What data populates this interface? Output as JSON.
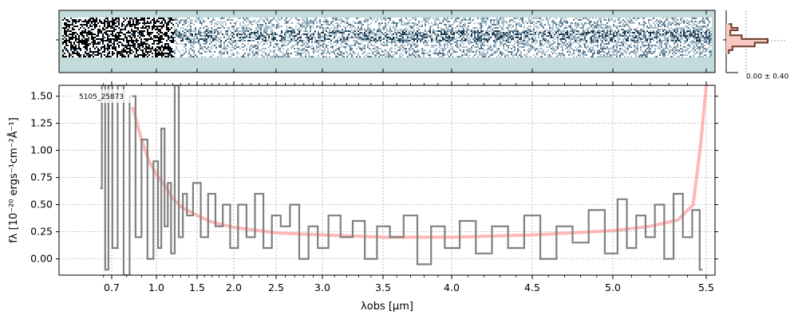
{
  "chart_data": [
    {
      "type": "heatmap",
      "panel": "2d-spectrum",
      "colormap": [
        "#000000",
        "#1e3a4c",
        "#5c7b90",
        "#a8bfcb",
        "#ffffff"
      ],
      "background": "#c3dbdb",
      "noise_level": "high at short wavelengths, lower toward long wavelengths"
    },
    {
      "type": "line",
      "panel": "profile",
      "label": "0.00 ± 0.40",
      "fill": "#f9c9c3",
      "line": "#6b3a2a",
      "profile": [
        {
          "y": 0.22,
          "v": 0.05
        },
        {
          "y": 0.28,
          "v": 0.1
        },
        {
          "y": 0.32,
          "v": 0.22
        },
        {
          "y": 0.4,
          "v": 0.08
        },
        {
          "y": 0.46,
          "v": 0.3
        },
        {
          "y": 0.52,
          "v": 0.8
        },
        {
          "y": 0.58,
          "v": 0.55
        },
        {
          "y": 0.64,
          "v": 0.12
        },
        {
          "y": 0.7,
          "v": 0.05
        }
      ]
    },
    {
      "type": "line",
      "panel": "1d-spectrum",
      "xlabel": "λobs [μm]",
      "ylabel": "fλ [10⁻²⁰ ergs⁻¹cm⁻²Å⁻¹]",
      "ylim": [
        -0.15,
        1.6
      ],
      "xlim": [
        0.55,
        5.52
      ],
      "x_scale": "sqrt-like spectral pixel scale",
      "y_ticks": [
        0.0,
        0.25,
        0.5,
        0.75,
        1.0,
        1.25,
        1.5
      ],
      "y_tick_labels": [
        "0.00",
        "0.25",
        "0.50",
        "0.75",
        "1.00",
        "1.25",
        "1.50"
      ],
      "x_ticks": [
        0.7,
        1.0,
        1.5,
        2.0,
        2.5,
        3.0,
        3.5,
        4.0,
        4.5,
        5.0,
        5.5
      ],
      "x_tick_labels": [
        "0.7",
        "1.0",
        "1.5",
        "2.0",
        "2.5",
        "3.0",
        "3.5",
        "4.0",
        "4.5",
        "5.0",
        "5.5"
      ],
      "grid": true,
      "annotation": "5105_25873",
      "series": [
        {
          "role": "data",
          "color": "#808080",
          "points": [
            [
              0.56,
              0.65
            ],
            [
              0.6,
              1.6
            ],
            [
              0.64,
              -0.1
            ],
            [
              0.68,
              1.6
            ],
            [
              0.72,
              0.1
            ],
            [
              0.76,
              1.6
            ],
            [
              0.8,
              -0.15
            ],
            [
              0.84,
              1.5
            ],
            [
              0.88,
              0.2
            ],
            [
              0.92,
              1.1
            ],
            [
              0.96,
              0.0
            ],
            [
              1.0,
              0.9
            ],
            [
              1.04,
              0.1
            ],
            [
              1.08,
              1.2
            ],
            [
              1.12,
              0.3
            ],
            [
              1.16,
              0.7
            ],
            [
              1.2,
              0.05
            ],
            [
              1.25,
              1.6
            ],
            [
              1.3,
              0.2
            ],
            [
              1.35,
              0.6
            ],
            [
              1.4,
              0.4
            ],
            [
              1.5,
              0.7
            ],
            [
              1.6,
              0.2
            ],
            [
              1.7,
              0.6
            ],
            [
              1.8,
              0.3
            ],
            [
              1.9,
              0.5
            ],
            [
              2.0,
              0.1
            ],
            [
              2.1,
              0.5
            ],
            [
              2.2,
              0.2
            ],
            [
              2.3,
              0.6
            ],
            [
              2.4,
              0.1
            ],
            [
              2.5,
              0.4
            ],
            [
              2.6,
              0.3
            ],
            [
              2.7,
              0.5
            ],
            [
              2.8,
              0.0
            ],
            [
              2.9,
              0.3
            ],
            [
              3.0,
              0.1
            ],
            [
              3.1,
              0.4
            ],
            [
              3.2,
              0.2
            ],
            [
              3.3,
              0.35
            ],
            [
              3.4,
              0.0
            ],
            [
              3.5,
              0.3
            ],
            [
              3.6,
              0.2
            ],
            [
              3.7,
              0.4
            ],
            [
              3.8,
              -0.05
            ],
            [
              3.9,
              0.3
            ],
            [
              4.0,
              0.1
            ],
            [
              4.1,
              0.35
            ],
            [
              4.2,
              0.05
            ],
            [
              4.3,
              0.3
            ],
            [
              4.4,
              0.1
            ],
            [
              4.5,
              0.4
            ],
            [
              4.6,
              0.0
            ],
            [
              4.7,
              0.3
            ],
            [
              4.8,
              0.15
            ],
            [
              4.9,
              0.45
            ],
            [
              5.0,
              0.05
            ],
            [
              5.05,
              0.55
            ],
            [
              5.1,
              0.1
            ],
            [
              5.15,
              0.4
            ],
            [
              5.2,
              0.2
            ],
            [
              5.25,
              0.5
            ],
            [
              5.3,
              0.0
            ],
            [
              5.35,
              0.6
            ],
            [
              5.4,
              0.2
            ],
            [
              5.45,
              0.45
            ],
            [
              5.48,
              -0.1
            ]
          ]
        },
        {
          "role": "model",
          "color": "#ff9a9a",
          "points": [
            [
              0.84,
              1.4
            ],
            [
              0.9,
              1.1
            ],
            [
              0.95,
              0.9
            ],
            [
              1.0,
              0.78
            ],
            [
              1.1,
              0.68
            ],
            [
              1.2,
              0.56
            ],
            [
              1.3,
              0.48
            ],
            [
              1.5,
              0.4
            ],
            [
              1.7,
              0.34
            ],
            [
              2.0,
              0.29
            ],
            [
              2.5,
              0.24
            ],
            [
              3.0,
              0.22
            ],
            [
              3.5,
              0.2
            ],
            [
              4.0,
              0.2
            ],
            [
              4.5,
              0.22
            ],
            [
              5.0,
              0.26
            ],
            [
              5.2,
              0.3
            ],
            [
              5.35,
              0.36
            ],
            [
              5.43,
              0.5
            ],
            [
              5.47,
              1.05
            ],
            [
              5.5,
              1.6
            ]
          ]
        }
      ]
    }
  ]
}
